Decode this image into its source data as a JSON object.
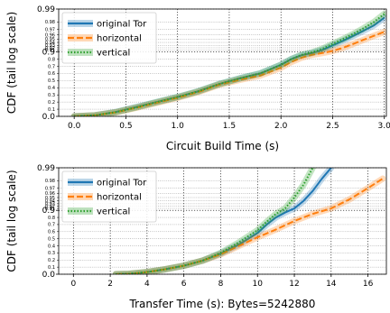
{
  "ylabel": "CDF (tail log scale)",
  "colors": {
    "original": "#1f77b4",
    "horizontal": "#ff7f0e",
    "vertical": "#2ca02c"
  },
  "chart_data": [
    {
      "type": "line",
      "xlabel": "Circuit Build Time (s)",
      "ylabel": "CDF (tail log scale)",
      "xlim": [
        -0.15,
        3.02
      ],
      "xticks": [
        "0.0",
        "0.5",
        "1.0",
        "1.5",
        "2.0",
        "2.5",
        "3.0"
      ],
      "xtick_values": [
        0,
        0.5,
        1.0,
        1.5,
        2.0,
        2.5,
        3.0
      ],
      "yscale": "tail-log",
      "ylim": [
        0,
        0.99
      ],
      "yticks_major": [
        "0.0",
        "0.9",
        "0.99"
      ],
      "yticks_major_values": [
        0,
        0.9,
        0.99
      ],
      "yticks_minor": [
        "0.1",
        "0.2",
        "0.3",
        "0.4",
        "0.5",
        "0.6",
        "0.7",
        "0.8",
        "0.91",
        "0.92",
        "0.93",
        "0.94",
        "0.95",
        "0.96",
        "0.97",
        "0.98"
      ],
      "yticks_minor_values": [
        0.1,
        0.2,
        0.3,
        0.4,
        0.5,
        0.6,
        0.7,
        0.8,
        0.91,
        0.92,
        0.93,
        0.94,
        0.95,
        0.96,
        0.97,
        0.98
      ],
      "grid": true,
      "legend_position": "top-left",
      "series": [
        {
          "name": "original Tor",
          "x": [
            0.0,
            0.2,
            0.4,
            0.6,
            0.8,
            1.0,
            1.2,
            1.4,
            1.6,
            1.8,
            2.0,
            2.1,
            2.2,
            2.3,
            2.4,
            2.5,
            2.6,
            2.7,
            2.8,
            2.9,
            3.0
          ],
          "y": [
            0.0,
            0.015,
            0.06,
            0.13,
            0.2,
            0.27,
            0.35,
            0.45,
            0.53,
            0.6,
            0.72,
            0.8,
            0.855,
            0.885,
            0.91,
            0.93,
            0.945,
            0.958,
            0.968,
            0.976,
            0.984
          ]
        },
        {
          "name": "horizontal",
          "x": [
            0.0,
            0.2,
            0.4,
            0.6,
            0.8,
            1.0,
            1.2,
            1.4,
            1.6,
            1.8,
            2.0,
            2.1,
            2.2,
            2.3,
            2.4,
            2.5,
            2.6,
            2.7,
            2.8,
            2.9,
            3.0
          ],
          "y": [
            0.0,
            0.015,
            0.055,
            0.12,
            0.19,
            0.26,
            0.34,
            0.44,
            0.51,
            0.57,
            0.68,
            0.76,
            0.82,
            0.86,
            0.885,
            0.905,
            0.92,
            0.935,
            0.948,
            0.958,
            0.966
          ]
        },
        {
          "name": "vertical",
          "x": [
            0.0,
            0.2,
            0.4,
            0.6,
            0.8,
            1.0,
            1.2,
            1.4,
            1.6,
            1.8,
            2.0,
            2.1,
            2.2,
            2.3,
            2.4,
            2.5,
            2.6,
            2.7,
            2.8,
            2.9,
            3.0
          ],
          "y": [
            0.0,
            0.015,
            0.058,
            0.125,
            0.2,
            0.27,
            0.35,
            0.45,
            0.53,
            0.6,
            0.72,
            0.8,
            0.86,
            0.893,
            0.916,
            0.935,
            0.95,
            0.962,
            0.972,
            0.98,
            0.987
          ]
        }
      ]
    },
    {
      "type": "line",
      "xlabel": "Transfer Time (s): Bytes=5242880",
      "ylabel": "CDF (tail log scale)",
      "xlim": [
        -0.8,
        17.0
      ],
      "xticks": [
        "0",
        "2",
        "4",
        "6",
        "8",
        "10",
        "12",
        "14",
        "16"
      ],
      "xtick_values": [
        0,
        2,
        4,
        6,
        8,
        10,
        12,
        14,
        16
      ],
      "yscale": "tail-log",
      "ylim": [
        0,
        0.99
      ],
      "yticks_major": [
        "0.0",
        "0.9",
        "0.99"
      ],
      "yticks_major_values": [
        0,
        0.9,
        0.99
      ],
      "yticks_minor": [
        "0.1",
        "0.2",
        "0.3",
        "0.4",
        "0.5",
        "0.6",
        "0.7",
        "0.8",
        "0.91",
        "0.92",
        "0.93",
        "0.94",
        "0.95",
        "0.96",
        "0.97",
        "0.98"
      ],
      "yticks_minor_values": [
        0.1,
        0.2,
        0.3,
        0.4,
        0.5,
        0.6,
        0.7,
        0.8,
        0.91,
        0.92,
        0.93,
        0.94,
        0.95,
        0.96,
        0.97,
        0.98
      ],
      "grid": true,
      "legend_position": "top-left",
      "series": [
        {
          "name": "original Tor",
          "x": [
            2.3,
            3,
            4,
            5,
            6,
            7,
            8,
            9,
            10,
            10.5,
            11,
            11.5,
            12,
            12.5,
            13,
            13.5,
            14
          ],
          "y": [
            0.0,
            0.005,
            0.03,
            0.07,
            0.12,
            0.19,
            0.29,
            0.42,
            0.58,
            0.7,
            0.8,
            0.87,
            0.91,
            0.94,
            0.965,
            0.982,
            0.99
          ]
        },
        {
          "name": "horizontal",
          "x": [
            2.3,
            3,
            4,
            5,
            6,
            7,
            8,
            9,
            10,
            11,
            12,
            13,
            14,
            15,
            16,
            16.8
          ],
          "y": [
            0.0,
            0.005,
            0.03,
            0.07,
            0.12,
            0.19,
            0.28,
            0.4,
            0.52,
            0.63,
            0.75,
            0.85,
            0.91,
            0.945,
            0.97,
            0.982
          ]
        },
        {
          "name": "vertical",
          "x": [
            2.3,
            3,
            4,
            5,
            6,
            7,
            8,
            9,
            10,
            10.5,
            11,
            11.5,
            12,
            12.5,
            13
          ],
          "y": [
            0.0,
            0.005,
            0.03,
            0.07,
            0.12,
            0.19,
            0.3,
            0.45,
            0.62,
            0.74,
            0.85,
            0.91,
            0.95,
            0.975,
            0.99
          ]
        }
      ]
    }
  ]
}
